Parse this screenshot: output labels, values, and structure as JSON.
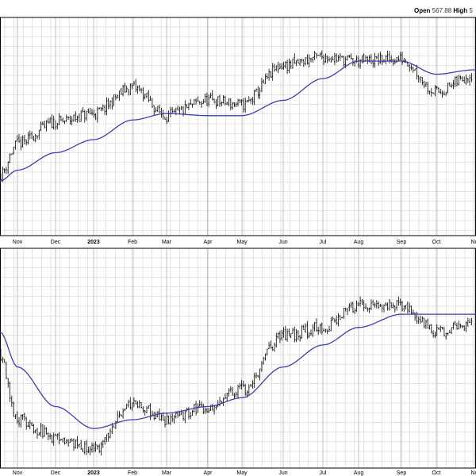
{
  "header": {
    "open_label": "Open",
    "open_value": "567.88",
    "high_label": "High",
    "high_value": "5"
  },
  "colors": {
    "price_bars": "#000000",
    "moving_average": "#3b3fb0",
    "grid": "#c8c8c8",
    "panel_border": "#000000"
  },
  "chart_data": [
    {
      "type": "bar",
      "subtype": "ohlc",
      "panel": "upper",
      "title": "",
      "xlabel": "",
      "ylabel": "",
      "x_tick_labels": [
        "Nov",
        "Dec",
        "2023",
        "Feb",
        "Mar",
        "Apr",
        "May",
        "Jun",
        "Jul",
        "Aug",
        "Sep",
        "Oct",
        "No"
      ],
      "grid": true,
      "y_axis_labels_visible": false,
      "series": [
        {
          "style": "ohlc-bars",
          "approx_close_by_period": {
            "Oct_end": 0.28,
            "Nov": 0.42,
            "Dec": 0.52,
            "2023_Jan": 0.56,
            "Feb": 0.68,
            "Mar": 0.55,
            "Apr": 0.62,
            "May": 0.6,
            "Jun": 0.78,
            "Jul": 0.82,
            "Aug_start": 0.86,
            "Aug": 0.8,
            "Sep": 0.81,
            "Oct": 0.66,
            "Nov_start": 0.74
          }
        },
        {
          "style": "moving-average-line",
          "approx_value_by_period": {
            "Oct_end": 0.25,
            "Nov": 0.3,
            "Dec": 0.38,
            "2023_Jan": 0.44,
            "Feb": 0.53,
            "Mar": 0.56,
            "Apr": 0.55,
            "May": 0.55,
            "Jun": 0.62,
            "Jul": 0.72,
            "Aug": 0.8,
            "Sep": 0.8,
            "Oct": 0.74,
            "Nov_start": 0.76
          }
        }
      ]
    },
    {
      "type": "bar",
      "subtype": "ohlc",
      "panel": "lower",
      "title": "",
      "xlabel": "",
      "ylabel": "",
      "x_tick_labels": [
        "Nov",
        "Dec",
        "2023",
        "Feb",
        "Mar",
        "Apr",
        "May",
        "Jun",
        "Jul",
        "Aug",
        "Sep",
        "Oct",
        "No"
      ],
      "grid": true,
      "y_axis_labels_visible": false,
      "series": [
        {
          "style": "ohlc-bars",
          "approx_close_by_period": {
            "Oct_end": 0.52,
            "Nov": 0.22,
            "Dec": 0.14,
            "2023_Jan": 0.08,
            "Feb": 0.3,
            "Mar": 0.22,
            "Apr": 0.28,
            "May": 0.36,
            "Jun": 0.6,
            "Jul": 0.64,
            "Aug": 0.74,
            "Sep": 0.74,
            "Oct": 0.62,
            "Nov_start": 0.66
          }
        },
        {
          "style": "moving-average-line",
          "approx_value_by_period": {
            "Oct_end": 0.62,
            "Nov": 0.46,
            "Dec": 0.28,
            "2023_Jan": 0.18,
            "Feb": 0.22,
            "Mar": 0.25,
            "Apr": 0.28,
            "May": 0.32,
            "Jun": 0.46,
            "Jul": 0.56,
            "Aug": 0.64,
            "Sep": 0.7,
            "Oct": 0.7,
            "Nov_start": 0.7
          }
        }
      ]
    }
  ]
}
